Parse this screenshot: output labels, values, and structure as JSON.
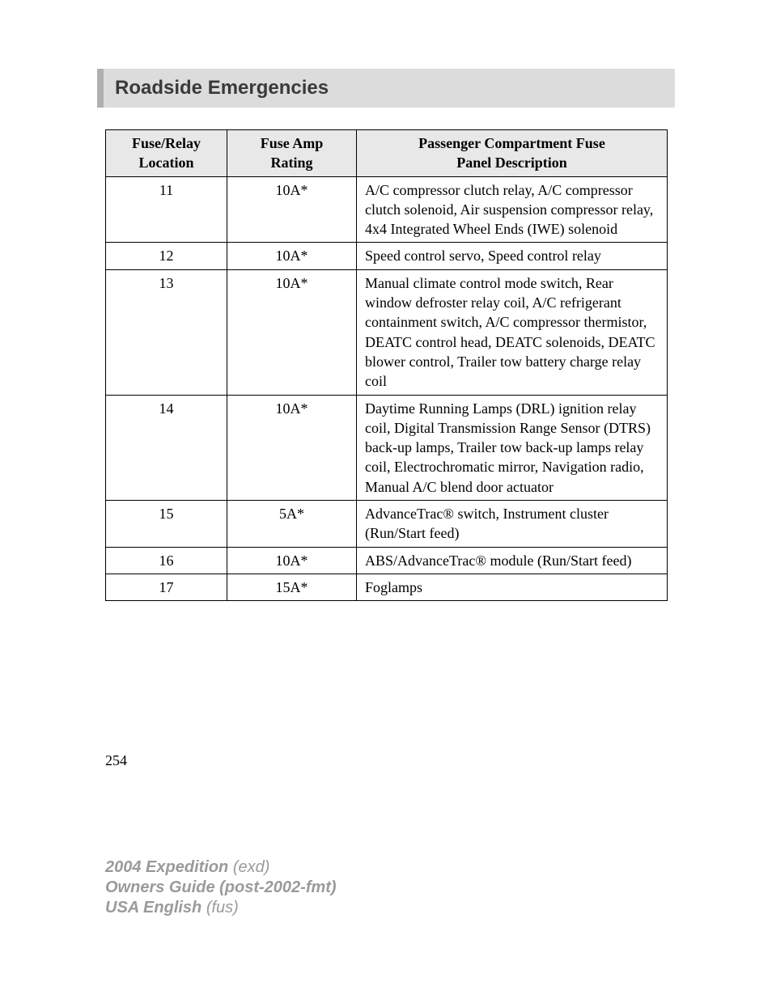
{
  "header": {
    "title": "Roadside Emergencies",
    "band_bg": "#dcdcdc",
    "accent_bg": "#b0b0b0",
    "title_color": "#3a3a3a"
  },
  "table": {
    "columns": [
      {
        "line1": "Fuse/Relay",
        "line2": "Location"
      },
      {
        "line1": "Fuse Amp",
        "line2": "Rating"
      },
      {
        "line1": "Passenger Compartment Fuse",
        "line2": "Panel Description"
      }
    ],
    "rows": [
      {
        "loc": "11",
        "amp": "10A*",
        "desc": "A/C compressor clutch relay, A/C compressor clutch solenoid, Air suspension compressor relay, 4x4 Integrated Wheel Ends (IWE) solenoid"
      },
      {
        "loc": "12",
        "amp": "10A*",
        "desc": "Speed control servo, Speed control relay"
      },
      {
        "loc": "13",
        "amp": "10A*",
        "desc": "Manual climate control mode switch, Rear window defroster relay coil, A/C refrigerant containment switch, A/C compressor thermistor, DEATC control head, DEATC solenoids, DEATC blower control, Trailer tow battery charge relay coil"
      },
      {
        "loc": "14",
        "amp": "10A*",
        "desc": "Daytime Running Lamps (DRL) ignition relay coil, Digital Transmission Range Sensor (DTRS) back-up lamps, Trailer tow back-up lamps relay coil, Electrochromatic mirror, Navigation radio, Manual A/C blend door actuator"
      },
      {
        "loc": "15",
        "amp": "5A*",
        "desc": "AdvanceTrac® switch, Instrument cluster (Run/Start feed)"
      },
      {
        "loc": "16",
        "amp": "10A*",
        "desc": "ABS/AdvanceTrac® module (Run/Start feed)"
      },
      {
        "loc": "17",
        "amp": "15A*",
        "desc": "Foglamps"
      }
    ],
    "header_bg": "#e8e8e8",
    "border_color": "#000000",
    "font_size_pt": 13
  },
  "page": {
    "number": "254"
  },
  "footer": {
    "model_bold": "2004 Expedition",
    "model_paren": "(exd)",
    "guide_bold": "Owners Guide (post-2002-fmt)",
    "lang_bold": "USA English",
    "lang_paren": "(fus)",
    "color": "#9a9a9a"
  }
}
